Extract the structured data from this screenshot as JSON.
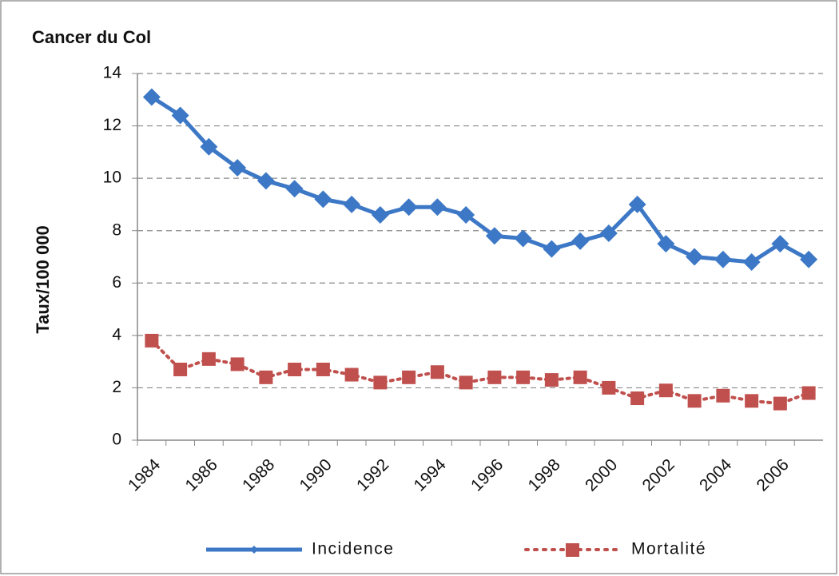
{
  "chart_data": {
    "type": "line",
    "title": "Cancer du Col",
    "y_label": "Taux/100 000",
    "categories": [
      "1984",
      null,
      "1986",
      null,
      "1988",
      null,
      "1990",
      null,
      "1992",
      null,
      "1994",
      null,
      "1996",
      null,
      "1998",
      null,
      "2000",
      null,
      "2002",
      null,
      "2004",
      null,
      "2006",
      null
    ],
    "series": [
      {
        "name": "Incidence",
        "color": "#3d78c6",
        "marker": "diamond",
        "linestyle": "solid",
        "values": [
          13.1,
          12.4,
          11.2,
          10.4,
          9.9,
          9.6,
          9.2,
          9.0,
          8.6,
          8.9,
          8.9,
          8.6,
          7.8,
          7.7,
          7.3,
          7.6,
          7.9,
          9.0,
          7.5,
          7.0,
          6.9,
          6.8,
          7.5,
          6.9
        ]
      },
      {
        "name": "Mortalité",
        "color": "#c0504d",
        "marker": "square",
        "linestyle": "dotted",
        "values": [
          3.8,
          2.7,
          3.1,
          2.9,
          2.4,
          2.7,
          2.7,
          2.5,
          2.2,
          2.4,
          2.6,
          2.2,
          2.4,
          2.4,
          2.3,
          2.4,
          2.0,
          1.6,
          1.9,
          1.5,
          1.7,
          1.5,
          1.4,
          1.8
        ]
      }
    ],
    "ylim": [
      0,
      14
    ],
    "yticks": [
      0,
      2,
      4,
      6,
      8,
      10,
      12,
      14
    ],
    "grid": true,
    "legend": "bottom"
  }
}
